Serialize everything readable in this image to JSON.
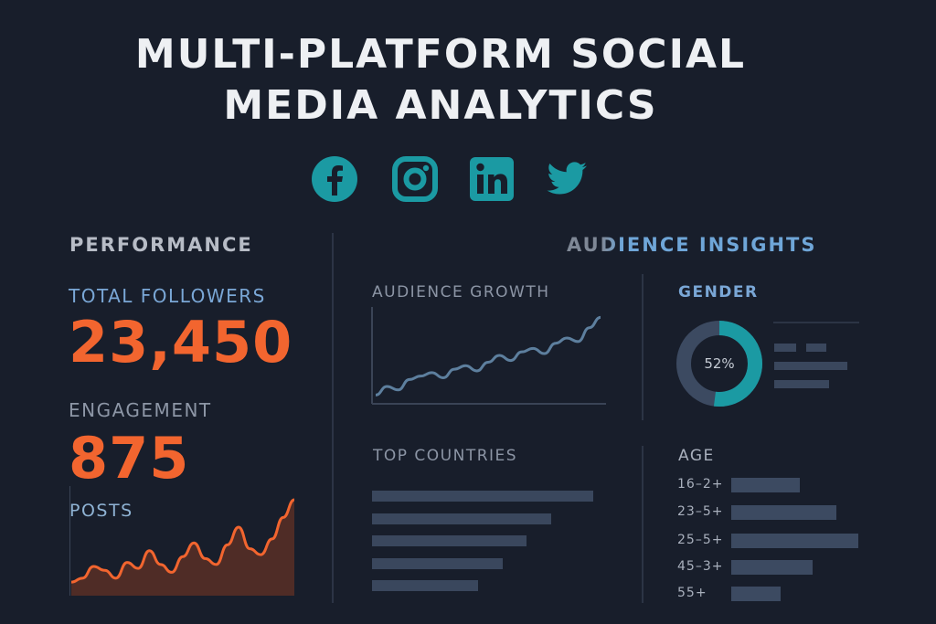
{
  "header": {
    "title_line1": "MULTI-PLATFORM SOCIAL",
    "title_line2": "MEDIA ANALYTICS"
  },
  "platform_icons": [
    "facebook-icon",
    "instagram-icon",
    "linkedin-icon",
    "twitter-icon"
  ],
  "colors": {
    "background": "#181e2b",
    "accent_orange": "#f2652f",
    "accent_teal": "#1b9aa3",
    "label_blue": "#7aa7d6",
    "bar_slate": "#3c4a61"
  },
  "performance": {
    "title": "PERFORMANCE",
    "followers_label": "TOTAL FOLLOWERS",
    "followers_value": "23,450",
    "engagement_label": "ENGAGEMENT",
    "engagement_value": "875",
    "posts_label": "POSTS"
  },
  "audience": {
    "title": "AUDIENCE INSIGHTS",
    "growth_label": "AUDIENCE GROWTH",
    "gender_label": "GENDER",
    "gender_center": "52%",
    "countries_label": "TOP COUNTRIES",
    "age_label": "AGE",
    "age_rows": [
      "16–2+",
      "23–5+",
      "25–5+",
      "45–3+",
      "55+"
    ]
  },
  "chart_data": [
    {
      "type": "area",
      "name": "posts",
      "x": [
        0,
        1,
        2,
        3,
        4,
        5,
        6,
        7,
        8,
        9,
        10,
        11,
        12,
        13,
        14,
        15,
        16,
        17,
        18,
        19,
        20
      ],
      "values": [
        12,
        16,
        28,
        24,
        16,
        32,
        26,
        44,
        30,
        22,
        38,
        52,
        36,
        30,
        50,
        68,
        46,
        40,
        56,
        78,
        96
      ],
      "ylim": [
        0,
        110
      ]
    },
    {
      "type": "line",
      "name": "audience-growth",
      "x": [
        0,
        1,
        2,
        3,
        4,
        5,
        6,
        7,
        8,
        9,
        10,
        11,
        12,
        13,
        14,
        15,
        16,
        17,
        18,
        19,
        20
      ],
      "values": [
        8,
        18,
        14,
        26,
        30,
        34,
        28,
        38,
        42,
        36,
        46,
        54,
        48,
        58,
        62,
        56,
        68,
        74,
        70,
        86,
        98
      ],
      "ylim": [
        0,
        110
      ]
    },
    {
      "type": "pie",
      "name": "gender",
      "values": [
        52,
        48
      ]
    },
    {
      "type": "bar",
      "name": "top-countries",
      "values": [
        100,
        81,
        70,
        59,
        48
      ]
    },
    {
      "type": "bar",
      "name": "age",
      "categories": [
        "16–2+",
        "23–5+",
        "25–5+",
        "45–3+",
        "55+"
      ],
      "values": [
        54,
        83,
        100,
        64,
        39
      ]
    }
  ]
}
